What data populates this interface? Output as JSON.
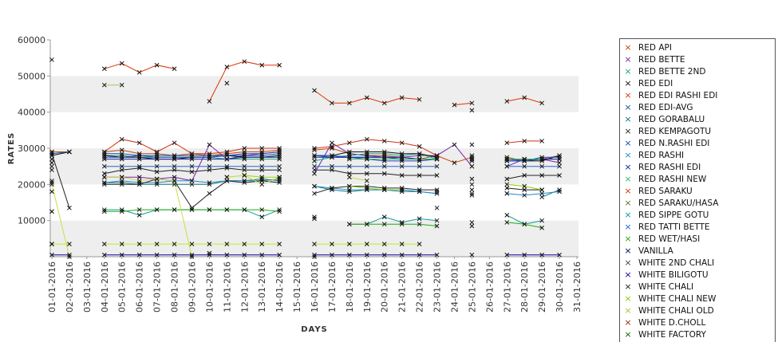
{
  "chart_data": {
    "type": "line",
    "title": "",
    "xlabel": "DAYS",
    "ylabel": "RATES",
    "ylim": [
      0,
      60000
    ],
    "yticks": [
      10000,
      20000,
      30000,
      40000,
      50000,
      60000
    ],
    "grid": "horizontal alternating bands",
    "legend_position": "right",
    "categories": [
      "01-01-2016",
      "02-01-2016",
      "03-01-2016",
      "04-01-2016",
      "05-01-2016",
      "06-01-2016",
      "07-01-2016",
      "08-01-2016",
      "09-01-2016",
      "10-01-2016",
      "11-01-2016",
      "12-01-2016",
      "13-01-2016",
      "14-01-2016",
      "15-01-2016",
      "16-01-2016",
      "17-01-2016",
      "18-01-2016",
      "19-01-2016",
      "20-01-2016",
      "21-01-2016",
      "22-01-2016",
      "23-01-2016",
      "24-01-2016",
      "25-01-2016",
      "26-01-2016",
      "27-01-2016",
      "28-01-2016",
      "29-01-2016",
      "30-01-2016",
      "31-01-2016"
    ],
    "series": [
      {
        "name": "RED API",
        "color": "#cc4400",
        "values": [
          29000,
          29000,
          null,
          29000,
          29500,
          28500,
          28500,
          28000,
          28500,
          28000,
          28500,
          29000,
          29000,
          29500,
          null,
          29500,
          30000,
          28500,
          28000,
          28000,
          27500,
          27000,
          28000,
          26000,
          27500,
          null,
          27500,
          26500,
          27000,
          28000,
          null
        ]
      },
      {
        "name": "RED BETTE",
        "color": "#7722aa",
        "values": [
          26000,
          null,
          null,
          22000,
          22000,
          22000,
          21500,
          22000,
          21000,
          31000,
          27000,
          28000,
          28500,
          29000,
          null,
          23000,
          31500,
          28500,
          28000,
          27500,
          27500,
          28000,
          28000,
          31000,
          25000,
          null,
          25000,
          27000,
          27000,
          26000,
          null
        ]
      },
      {
        "name": "RED BETTE 2ND",
        "color": "#11aa77",
        "values": [
          29000,
          null,
          null,
          28000,
          28000,
          27500,
          27500,
          27500,
          27500,
          27500,
          27000,
          27000,
          27000,
          27000,
          null,
          26500,
          27500,
          28000,
          28500,
          28500,
          28000,
          28500,
          27000,
          null,
          27500,
          null,
          27000,
          null,
          null,
          null,
          null
        ]
      },
      {
        "name": "RED EDI",
        "color": "#111111",
        "values": [
          28000,
          29000,
          null,
          28000,
          27500,
          27500,
          27000,
          27000,
          27500,
          27500,
          28000,
          27500,
          27500,
          28000,
          null,
          28000,
          28000,
          29000,
          29000,
          29000,
          28500,
          28500,
          27500,
          null,
          28000,
          null,
          26500,
          26500,
          26500,
          28000,
          null
        ]
      },
      {
        "name": "RED EDI RASHI EDI",
        "color": "#dd3300",
        "values": [
          54500,
          null,
          null,
          52000,
          53500,
          51000,
          53000,
          52000,
          null,
          43000,
          52500,
          54000,
          53000,
          53000,
          null,
          46000,
          42500,
          42500,
          44000,
          42500,
          44000,
          43500,
          null,
          42000,
          42500,
          null,
          43000,
          44000,
          42500,
          null,
          null
        ]
      },
      {
        "name": "RED EDI-AVG",
        "color": "#1155aa",
        "values": [
          28500,
          29000,
          null,
          28500,
          28500,
          28000,
          28000,
          28000,
          28000,
          28000,
          28000,
          28000,
          28000,
          28500,
          null,
          28000,
          28000,
          27500,
          27500,
          27500,
          27000,
          27000,
          27000,
          null,
          26500,
          null,
          26500,
          26500,
          27000,
          27000,
          null
        ]
      },
      {
        "name": "RED GORABALU",
        "color": "#117777",
        "values": [
          20500,
          null,
          null,
          20500,
          20500,
          20000,
          20000,
          20000,
          20000,
          20000,
          21000,
          21000,
          21500,
          21000,
          null,
          19500,
          18500,
          18000,
          18500,
          18500,
          18500,
          18000,
          17500,
          null,
          17000,
          null,
          17500,
          null,
          16500,
          18500,
          null
        ]
      },
      {
        "name": "RED KEMPAGOTU",
        "color": "#222222",
        "values": [
          24000,
          null,
          null,
          23000,
          24000,
          24500,
          23500,
          24000,
          23500,
          24000,
          24500,
          24000,
          24000,
          24000,
          null,
          24000,
          24000,
          23000,
          23000,
          23000,
          22500,
          22500,
          22500,
          null,
          21500,
          null,
          21500,
          22500,
          22500,
          22500,
          null
        ]
      },
      {
        "name": "RED N.RASHI EDI",
        "color": "#2244bb",
        "values": [
          28000,
          null,
          null,
          27500,
          27500,
          28000,
          27500,
          27500,
          27500,
          27500,
          28000,
          28500,
          28500,
          29000,
          null,
          28000,
          27500,
          27500,
          27000,
          26500,
          26500,
          26500,
          27000,
          null,
          27000,
          null,
          27000,
          26500,
          27500,
          27500,
          null
        ]
      },
      {
        "name": "RED RASHI",
        "color": "#2288cc",
        "values": [
          21000,
          null,
          null,
          20500,
          21000,
          20500,
          20500,
          21000,
          21000,
          20500,
          21000,
          21000,
          21000,
          21500,
          null,
          19500,
          19000,
          18500,
          18500,
          18500,
          18000,
          18000,
          17500,
          null,
          17500,
          null,
          17500,
          17000,
          17500,
          18000,
          null
        ]
      },
      {
        "name": "RED RASHI EDI",
        "color": "#1122aa",
        "values": [
          27000,
          null,
          null,
          27000,
          27000,
          27000,
          27000,
          27000,
          27000,
          27000,
          27000,
          27500,
          27500,
          27500,
          null,
          27500,
          27500,
          27500,
          27500,
          27500,
          27500,
          27000,
          27000,
          null,
          27000,
          null,
          27000,
          27000,
          27000,
          27000,
          null
        ]
      },
      {
        "name": "RED RASHI NEW",
        "color": "#33bb66",
        "values": [
          null,
          null,
          null,
          null,
          null,
          null,
          null,
          null,
          null,
          null,
          null,
          null,
          null,
          null,
          null,
          null,
          null,
          27000,
          27000,
          27000,
          27000,
          27000,
          27000,
          null,
          27000,
          null,
          27000,
          27000,
          27000,
          null,
          null
        ]
      },
      {
        "name": "RED SARAKU",
        "color": "#cc3311",
        "values": [
          28000,
          null,
          null,
          29000,
          32500,
          31500,
          29000,
          31500,
          28500,
          28500,
          29000,
          30000,
          30000,
          30000,
          null,
          30000,
          30500,
          31500,
          32500,
          32000,
          31500,
          30500,
          28000,
          null,
          31000,
          null,
          31500,
          32000,
          32000,
          null,
          null
        ]
      },
      {
        "name": "RED SARAKU/HASA",
        "color": "#667722",
        "values": [
          null,
          null,
          null,
          null,
          null,
          null,
          null,
          null,
          null,
          null,
          null,
          null,
          null,
          null,
          null,
          null,
          null,
          null,
          null,
          null,
          null,
          null,
          13500,
          null,
          null,
          null,
          null,
          null,
          null,
          null,
          null
        ]
      },
      {
        "name": "RED SIPPE GOTU",
        "color": "#119999",
        "values": [
          12500,
          null,
          null,
          13000,
          13000,
          11500,
          13000,
          13000,
          13000,
          13000,
          13000,
          13000,
          11000,
          13000,
          null,
          10500,
          null,
          9000,
          9000,
          11000,
          9500,
          10500,
          10000,
          null,
          9500,
          null,
          11500,
          9000,
          10000,
          null,
          null
        ]
      },
      {
        "name": "RED TATTI BETTE",
        "color": "#2266cc",
        "values": [
          25000,
          null,
          null,
          25000,
          25000,
          25000,
          25000,
          25000,
          25000,
          25000,
          25000,
          25000,
          25000,
          25000,
          null,
          25000,
          25000,
          25000,
          25000,
          25000,
          25000,
          25000,
          25000,
          null,
          25000,
          null,
          25000,
          25000,
          25000,
          25000,
          null
        ]
      },
      {
        "name": "RED WET/HASI",
        "color": "#22aa11",
        "values": [
          12500,
          null,
          null,
          12500,
          12500,
          13000,
          13000,
          13000,
          13000,
          13000,
          13000,
          13000,
          13000,
          12500,
          null,
          11000,
          null,
          9000,
          9000,
          9000,
          9000,
          9000,
          8500,
          null,
          8500,
          null,
          9500,
          9000,
          8000,
          null,
          null
        ]
      },
      {
        "name": "VANILLA",
        "color": "#000066",
        "values": [
          null,
          null,
          null,
          null,
          null,
          null,
          null,
          null,
          null,
          null,
          null,
          null,
          null,
          null,
          null,
          null,
          null,
          null,
          null,
          null,
          null,
          null,
          null,
          null,
          null,
          null,
          null,
          null,
          null,
          null,
          null
        ]
      },
      {
        "name": "WHITE 2ND CHALI",
        "color": "#444444",
        "values": [
          3500,
          null,
          null,
          null,
          null,
          null,
          null,
          null,
          null,
          1000,
          null,
          null,
          null,
          null,
          null,
          null,
          null,
          null,
          null,
          null,
          null,
          null,
          null,
          null,
          null,
          null,
          null,
          null,
          null,
          null,
          null
        ]
      },
      {
        "name": "WHITE BILIGOTU",
        "color": "#110099",
        "values": [
          500,
          500,
          null,
          500,
          500,
          500,
          500,
          500,
          500,
          500,
          500,
          500,
          500,
          500,
          null,
          500,
          500,
          500,
          500,
          500,
          500,
          500,
          500,
          null,
          500,
          null,
          500,
          500,
          500,
          500,
          null
        ]
      },
      {
        "name": "WHITE CHALI",
        "color": "#222222",
        "values": [
          28500,
          13500,
          null,
          20000,
          20000,
          20000,
          21500,
          21000,
          13500,
          17500,
          21000,
          20500,
          21000,
          20500,
          null,
          17500,
          19000,
          19500,
          19500,
          19000,
          19000,
          18500,
          18500,
          null,
          18500,
          null,
          19000,
          18500,
          18500,
          null,
          null
        ]
      },
      {
        "name": "WHITE CHALI NEW",
        "color": "#88cc00",
        "values": [
          null,
          null,
          null,
          null,
          null,
          null,
          null,
          null,
          null,
          null,
          null,
          null,
          null,
          null,
          null,
          null,
          null,
          19500,
          19000,
          18500,
          18500,
          null,
          18000,
          null,
          20000,
          null,
          20000,
          19500,
          18500,
          null,
          null
        ]
      },
      {
        "name": "WHITE CHALI OLD",
        "color": "#bbbb33",
        "values": [
          null,
          null,
          null,
          null,
          null,
          null,
          null,
          null,
          null,
          null,
          null,
          null,
          null,
          null,
          null,
          null,
          null,
          null,
          null,
          null,
          null,
          null,
          null,
          null,
          null,
          null,
          null,
          null,
          null,
          null,
          null
        ]
      },
      {
        "name": "WHITE D.CHOLL",
        "color": "#883300",
        "values": [
          null,
          null,
          null,
          null,
          null,
          null,
          null,
          null,
          null,
          null,
          null,
          null,
          null,
          null,
          null,
          null,
          null,
          null,
          null,
          null,
          null,
          null,
          null,
          null,
          null,
          null,
          null,
          null,
          null,
          null,
          null
        ]
      },
      {
        "name": "WHITE FACTORY",
        "color": "#116600",
        "values": [
          null,
          null,
          null,
          null,
          null,
          null,
          null,
          null,
          null,
          null,
          null,
          null,
          null,
          null,
          null,
          null,
          null,
          null,
          null,
          null,
          null,
          null,
          null,
          null,
          null,
          null,
          null,
          null,
          null,
          null,
          null
        ]
      },
      {
        "name": "",
        "color": "#99cc66",
        "values": [
          null,
          null,
          null,
          47500,
          47500,
          null,
          null,
          null,
          null,
          null,
          48000,
          null,
          null,
          null,
          null,
          null,
          null,
          null,
          null,
          null,
          null,
          null,
          null,
          null,
          40500,
          null,
          null,
          null,
          null,
          null,
          null
        ]
      },
      {
        "name": "",
        "color": "#99dd00",
        "values": [
          18000,
          null,
          null,
          20500,
          null,
          null,
          null,
          null,
          null,
          null,
          22000,
          22500,
          22000,
          22000,
          null,
          null,
          null,
          null,
          null,
          null,
          null,
          null,
          null,
          null,
          null,
          null,
          null,
          null,
          null,
          null,
          null
        ]
      },
      {
        "name": "",
        "color": "#ccdd44",
        "values": [
          20000,
          0,
          null,
          22000,
          22000,
          21000,
          21500,
          21000,
          0,
          null,
          22000,
          22500,
          20000,
          22000,
          null,
          0,
          null,
          22000,
          21000,
          null,
          null,
          null,
          null,
          null,
          null,
          null,
          null,
          null,
          null,
          null,
          null
        ]
      },
      {
        "name": "",
        "color": "#bbee22",
        "values": [
          3500,
          3500,
          null,
          3500,
          3500,
          3500,
          3500,
          3500,
          3500,
          3500,
          3500,
          3500,
          3500,
          3500,
          null,
          3500,
          3500,
          3500,
          3500,
          3500,
          3500,
          3500,
          null,
          null,
          null,
          null,
          null,
          null,
          null,
          null,
          null
        ]
      }
    ]
  }
}
